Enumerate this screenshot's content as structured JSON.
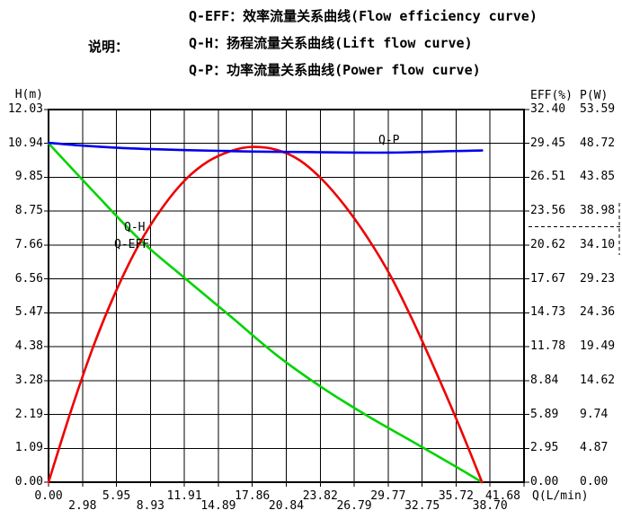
{
  "legend": {
    "label": "说明：",
    "items": [
      {
        "text": "Q-EFF：效率流量关系曲线(Flow efficiency curve)"
      },
      {
        "text": "Q-H：扬程流量关系曲线(Lift flow curve)"
      },
      {
        "text": "Q-P：功率流量关系曲线(Power flow curve)"
      }
    ]
  },
  "axes": {
    "left": {
      "title": "H(m)",
      "ticks": [
        "12.03",
        "10.94",
        "9.85",
        "8.75",
        "7.66",
        "6.56",
        "5.47",
        "4.38",
        "3.28",
        "2.19",
        "1.09",
        "0.00"
      ]
    },
    "right_eff": {
      "title": "EFF(%)",
      "ticks": [
        "32.40",
        "29.45",
        "26.51",
        "23.56",
        "20.62",
        "17.67",
        "14.73",
        "11.78",
        "8.84",
        "5.89",
        "2.95",
        "0.00"
      ]
    },
    "right_p": {
      "title": "P(W)",
      "ticks": [
        "53.59",
        "48.72",
        "43.85",
        "38.98",
        "34.10",
        "29.23",
        "24.36",
        "19.49",
        "14.62",
        "9.74",
        "4.87",
        "0.00"
      ]
    },
    "bottom": {
      "title": "Q(L/min)",
      "ticks": [
        "0.00",
        "2.98",
        "5.95",
        "8.93",
        "11.91",
        "14.89",
        "17.86",
        "20.84",
        "23.82",
        "26.79",
        "29.77",
        "32.75",
        "35.72",
        "38.70",
        "41.68"
      ]
    }
  },
  "curve_labels": {
    "qh": "Q-H",
    "qeff": "Q-EFF",
    "qp": "Q-P"
  },
  "colors": {
    "background": "#ffffff",
    "grid": "#000000",
    "text": "#000000",
    "curve_h": "#00d300",
    "curve_eff": "#ee0000",
    "curve_p": "#0000ee"
  },
  "chart_data": {
    "type": "line",
    "title": "",
    "xlabel": "Q(L/min)",
    "x": {
      "min": 0,
      "max": 41.68,
      "ticks": [
        0.0,
        2.98,
        5.95,
        8.93,
        11.91,
        14.89,
        17.86,
        20.84,
        23.82,
        26.79,
        29.77,
        32.75,
        35.72,
        38.7,
        41.68
      ]
    },
    "axes": {
      "H": {
        "label": "H(m)",
        "min": 0,
        "max": 12.03
      },
      "EFF": {
        "label": "EFF(%)",
        "min": 0,
        "max": 32.4
      },
      "P": {
        "label": "P(W)",
        "min": 0,
        "max": 53.59
      }
    },
    "grid": "on",
    "series": [
      {
        "name": "Q-H",
        "axis": "H",
        "color": "#00d300",
        "points": [
          [
            0,
            10.94
          ],
          [
            4,
            9.36
          ],
          [
            8,
            7.83
          ],
          [
            12,
            6.57
          ],
          [
            16,
            5.34
          ],
          [
            20,
            4.1
          ],
          [
            24,
            3.05
          ],
          [
            28,
            2.13
          ],
          [
            32,
            1.29
          ],
          [
            36,
            0.44
          ],
          [
            38,
            0
          ]
        ]
      },
      {
        "name": "Q-EFF",
        "axis": "EFF",
        "color": "#ee0000",
        "points": [
          [
            0,
            0
          ],
          [
            2,
            6.3
          ],
          [
            4,
            12.0
          ],
          [
            6,
            16.8
          ],
          [
            8,
            20.8
          ],
          [
            10,
            23.9
          ],
          [
            12,
            26.3
          ],
          [
            14,
            27.9
          ],
          [
            16,
            28.8
          ],
          [
            17.8,
            29.15
          ],
          [
            20,
            28.9
          ],
          [
            22,
            28.0
          ],
          [
            24,
            26.3
          ],
          [
            26,
            24.0
          ],
          [
            28,
            21.2
          ],
          [
            30,
            17.9
          ],
          [
            32,
            13.9
          ],
          [
            34,
            9.5
          ],
          [
            36,
            4.9
          ],
          [
            38,
            0
          ]
        ]
      },
      {
        "name": "Q-P",
        "axis": "P",
        "color": "#0000ee",
        "points": [
          [
            0,
            48.8
          ],
          [
            3,
            48.4
          ],
          [
            6,
            48.1
          ],
          [
            9,
            47.9
          ],
          [
            12,
            47.75
          ],
          [
            15,
            47.65
          ],
          [
            18,
            47.55
          ],
          [
            21,
            47.5
          ],
          [
            24,
            47.45
          ],
          [
            27,
            47.4
          ],
          [
            30,
            47.4
          ],
          [
            33,
            47.5
          ],
          [
            35,
            47.6
          ],
          [
            38,
            47.7
          ]
        ]
      }
    ],
    "annotations": [
      {
        "name": "rated-point-bracket",
        "style": "dashed",
        "location": "right margin, between the 23.56/38.98 and 20.62/34.10 tick rows"
      }
    ]
  }
}
